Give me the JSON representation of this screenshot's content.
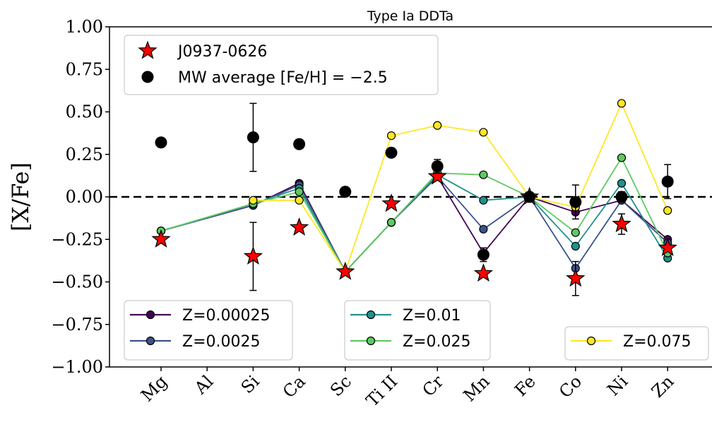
{
  "chart_data": {
    "type": "scatter",
    "title": "Type Ia DDTa",
    "xlabel": "",
    "ylabel": "[X/Fe]",
    "ylim": [
      -1.0,
      1.0
    ],
    "yticks": [
      "1.00",
      "0.75",
      "0.50",
      "0.25",
      "0.00",
      "−0.25",
      "−0.50",
      "−0.75",
      "−1.00"
    ],
    "categories": [
      "Mg",
      "Al",
      "Si",
      "Ca",
      "Sc",
      "Ti II",
      "Cr",
      "Mn",
      "Fe",
      "Co",
      "Ni",
      "Zn"
    ],
    "reference_line_y": 0.0,
    "observations": [
      {
        "name": "J0937-0626",
        "marker": "star",
        "color": "#ff0000",
        "points": [
          {
            "x": "Mg",
            "y": -0.25
          },
          {
            "x": "Si",
            "y": -0.35,
            "err": 0.2
          },
          {
            "x": "Ca",
            "y": -0.18
          },
          {
            "x": "Sc",
            "y": -0.44
          },
          {
            "x": "Ti II",
            "y": -0.04
          },
          {
            "x": "Cr",
            "y": 0.12
          },
          {
            "x": "Mn",
            "y": -0.45
          },
          {
            "x": "Fe",
            "y": 0.0
          },
          {
            "x": "Co",
            "y": -0.48,
            "err": 0.1
          },
          {
            "x": "Ni",
            "y": -0.16,
            "err": 0.06
          },
          {
            "x": "Zn",
            "y": -0.3
          }
        ]
      },
      {
        "name": "MW average [Fe/H] = −2.5",
        "marker": "circle",
        "color": "#000000",
        "points": [
          {
            "x": "Mg",
            "y": 0.32
          },
          {
            "x": "Si",
            "y": 0.35,
            "err": 0.2
          },
          {
            "x": "Ca",
            "y": 0.31
          },
          {
            "x": "Sc",
            "y": 0.03
          },
          {
            "x": "Ti II",
            "y": 0.26
          },
          {
            "x": "Cr",
            "y": 0.18,
            "err": 0.04
          },
          {
            "x": "Mn",
            "y": -0.34,
            "err": 0.04
          },
          {
            "x": "Fe",
            "y": 0.0
          },
          {
            "x": "Co",
            "y": -0.03,
            "err": 0.1
          },
          {
            "x": "Ni",
            "y": 0.0,
            "err": 0.03
          },
          {
            "x": "Zn",
            "y": 0.09,
            "err": 0.1
          }
        ]
      }
    ],
    "series": [
      {
        "name": "Z=0.00025",
        "color": "#440154",
        "points": [
          {
            "x": "Mg",
            "y": -0.2
          },
          {
            "x": "Si",
            "y": -0.05
          },
          {
            "x": "Ca",
            "y": 0.08
          },
          {
            "x": "Sc",
            "y": -0.44
          },
          {
            "x": "Ti II",
            "y": -0.15
          },
          {
            "x": "Cr",
            "y": 0.12
          },
          {
            "x": "Mn",
            "y": -0.33
          },
          {
            "x": "Fe",
            "y": 0.0
          },
          {
            "x": "Co",
            "y": -0.09
          },
          {
            "x": "Ni",
            "y": -0.02
          },
          {
            "x": "Zn",
            "y": -0.25
          }
        ]
      },
      {
        "name": "Z=0.0025",
        "color": "#3b528b",
        "points": [
          {
            "x": "Mg",
            "y": -0.2
          },
          {
            "x": "Si",
            "y": -0.05
          },
          {
            "x": "Ca",
            "y": 0.07
          },
          {
            "x": "Sc",
            "y": -0.44
          },
          {
            "x": "Ti II",
            "y": -0.15
          },
          {
            "x": "Cr",
            "y": 0.12
          },
          {
            "x": "Mn",
            "y": -0.19
          },
          {
            "x": "Fe",
            "y": 0.0
          },
          {
            "x": "Co",
            "y": -0.42
          },
          {
            "x": "Ni",
            "y": -0.02
          },
          {
            "x": "Zn",
            "y": -0.27
          }
        ]
      },
      {
        "name": "Z=0.01",
        "color": "#21918c",
        "points": [
          {
            "x": "Mg",
            "y": -0.2
          },
          {
            "x": "Si",
            "y": -0.04
          },
          {
            "x": "Ca",
            "y": 0.05
          },
          {
            "x": "Sc",
            "y": -0.44
          },
          {
            "x": "Ti II",
            "y": -0.15
          },
          {
            "x": "Cr",
            "y": 0.13
          },
          {
            "x": "Mn",
            "y": -0.02
          },
          {
            "x": "Fe",
            "y": 0.0
          },
          {
            "x": "Co",
            "y": -0.29
          },
          {
            "x": "Ni",
            "y": 0.08
          },
          {
            "x": "Zn",
            "y": -0.36
          }
        ]
      },
      {
        "name": "Z=0.025",
        "color": "#5ec962",
        "points": [
          {
            "x": "Mg",
            "y": -0.2
          },
          {
            "x": "Si",
            "y": -0.04
          },
          {
            "x": "Ca",
            "y": 0.03
          },
          {
            "x": "Sc",
            "y": -0.44
          },
          {
            "x": "Ti II",
            "y": -0.15
          },
          {
            "x": "Cr",
            "y": 0.14
          },
          {
            "x": "Mn",
            "y": 0.13
          },
          {
            "x": "Fe",
            "y": 0.0
          },
          {
            "x": "Co",
            "y": -0.21
          },
          {
            "x": "Ni",
            "y": 0.23
          },
          {
            "x": "Zn",
            "y": -0.33
          }
        ]
      },
      {
        "name": "Z=0.075",
        "color": "#fde725",
        "points": [
          {
            "x": "Si",
            "y": -0.02
          },
          {
            "x": "Ca",
            "y": -0.02
          },
          {
            "x": "Sc",
            "y": -0.44
          },
          {
            "x": "Ti II",
            "y": 0.36
          },
          {
            "x": "Cr",
            "y": 0.42
          },
          {
            "x": "Mn",
            "y": 0.38
          },
          {
            "x": "Fe",
            "y": 0.0
          },
          {
            "x": "Co",
            "y": -0.06
          },
          {
            "x": "Ni",
            "y": 0.55
          },
          {
            "x": "Zn",
            "y": -0.08
          }
        ]
      }
    ],
    "legends": [
      {
        "placement": "upper-left",
        "entries": [
          "J0937-0626",
          "MW average [Fe/H] = −2.5"
        ]
      },
      {
        "placement": "lower-left",
        "entries": [
          "Z=0.00025",
          "Z=0.0025"
        ]
      },
      {
        "placement": "lower-center",
        "entries": [
          "Z=0.01",
          "Z=0.025"
        ]
      },
      {
        "placement": "lower-right",
        "entries": [
          "Z=0.075"
        ]
      }
    ]
  }
}
